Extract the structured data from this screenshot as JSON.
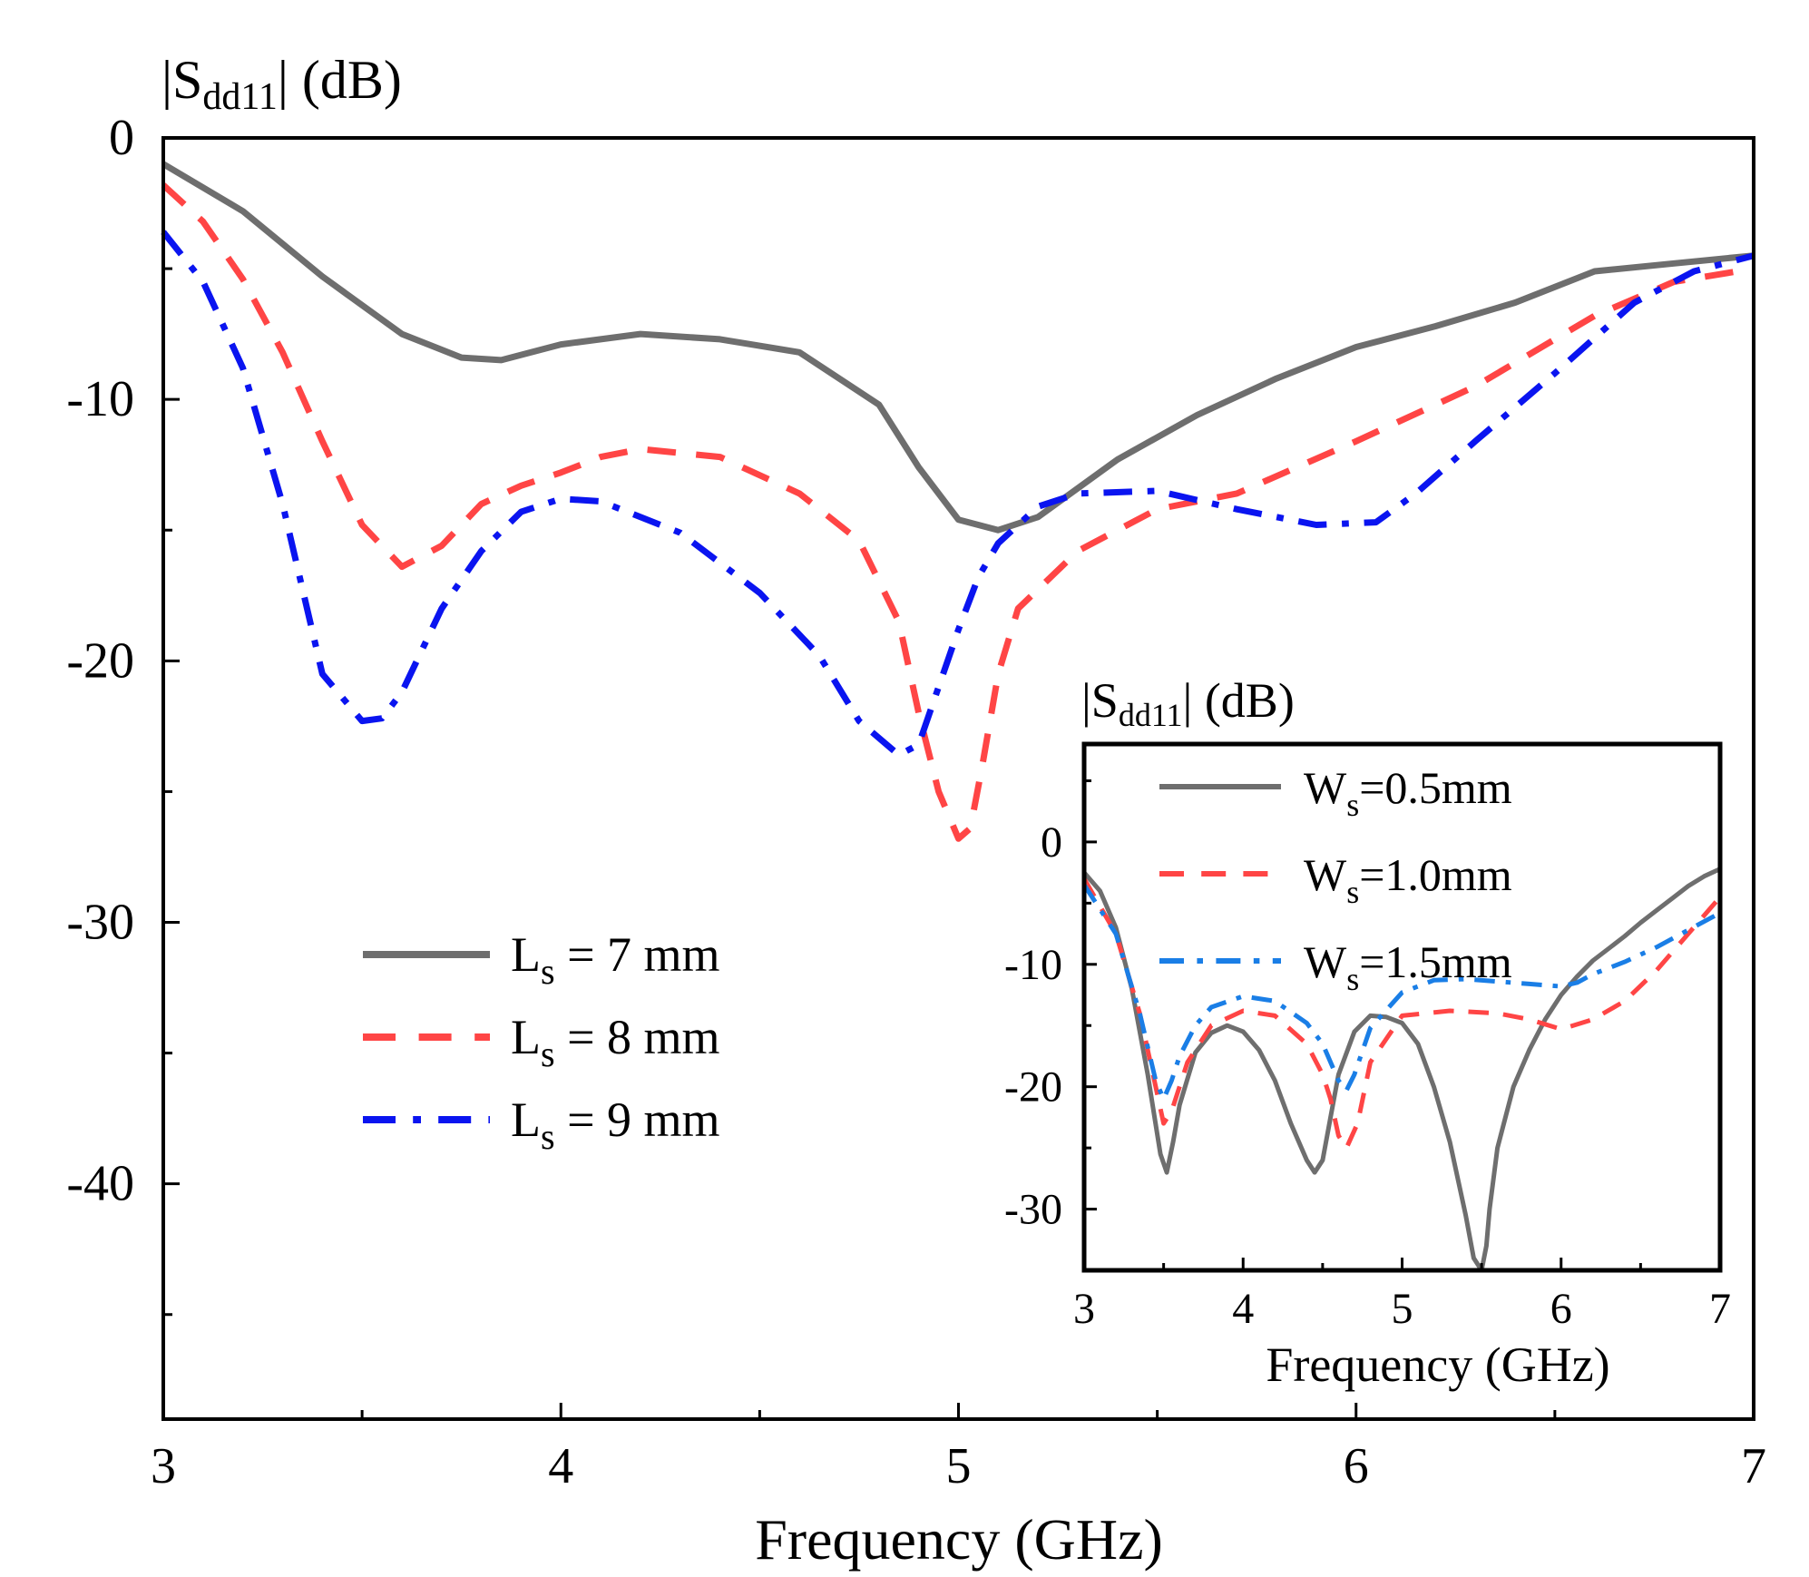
{
  "chart_data": [
    {
      "type": "line",
      "xlabel": "Frequency (GHz)",
      "ylabel": {
        "prefix": "|S",
        "sub": "dd11",
        "suffix": "| (dB)"
      },
      "xlim": [
        3,
        7
      ],
      "ylim": [
        -49,
        0
      ],
      "xticks": [
        3,
        4,
        5,
        6,
        7
      ],
      "yticks": [
        0,
        -10,
        -20,
        -30,
        -40
      ],
      "legend_position": "center-left",
      "series": [
        {
          "name": "Ls = 7 mm",
          "label": {
            "main": "L",
            "sub": "s",
            "rest": " = 7 mm"
          },
          "color": "#6e6e6e",
          "style": "solid",
          "x": [
            3.0,
            3.2,
            3.4,
            3.6,
            3.75,
            3.85,
            4.0,
            4.2,
            4.4,
            4.6,
            4.8,
            4.9,
            5.0,
            5.1,
            5.2,
            5.4,
            5.6,
            5.8,
            6.0,
            6.2,
            6.4,
            6.6,
            6.8,
            7.0
          ],
          "y": [
            -1.0,
            -2.8,
            -5.3,
            -7.5,
            -8.4,
            -8.5,
            -7.9,
            -7.5,
            -7.7,
            -8.2,
            -10.2,
            -12.6,
            -14.6,
            -15.0,
            -14.5,
            -12.3,
            -10.6,
            -9.2,
            -8.0,
            -7.2,
            -6.3,
            -5.1,
            -4.8,
            -4.5
          ]
        },
        {
          "name": "Ls = 8 mm",
          "label": {
            "main": "L",
            "sub": "s",
            "rest": " = 8 mm"
          },
          "color": "#ff4545",
          "style": "dashed",
          "x": [
            3.0,
            3.1,
            3.2,
            3.3,
            3.4,
            3.5,
            3.6,
            3.7,
            3.8,
            3.9,
            4.0,
            4.1,
            4.2,
            4.4,
            4.6,
            4.75,
            4.85,
            4.9,
            4.95,
            5.0,
            5.03,
            5.06,
            5.1,
            5.15,
            5.3,
            5.5,
            5.7,
            6.0,
            6.3,
            6.6,
            6.8,
            7.0
          ],
          "y": [
            -1.8,
            -3.2,
            -5.4,
            -8.2,
            -11.6,
            -14.8,
            -16.4,
            -15.6,
            -14.0,
            -13.3,
            -12.8,
            -12.2,
            -11.9,
            -12.2,
            -13.6,
            -15.4,
            -18.5,
            -22.0,
            -25.0,
            -26.8,
            -26.4,
            -24.0,
            -20.5,
            -18.0,
            -15.8,
            -14.2,
            -13.6,
            -11.6,
            -9.5,
            -6.8,
            -5.5,
            -5.0
          ]
        },
        {
          "name": "Ls = 9 mm",
          "label": {
            "main": "L",
            "sub": "s",
            "rest": " = 9 mm"
          },
          "color": "#0a14f0",
          "style": "dashdot",
          "x": [
            3.0,
            3.1,
            3.2,
            3.3,
            3.4,
            3.5,
            3.55,
            3.6,
            3.7,
            3.8,
            3.9,
            4.0,
            4.1,
            4.3,
            4.5,
            4.65,
            4.75,
            4.85,
            4.9,
            4.95,
            5.0,
            5.05,
            5.1,
            5.2,
            5.3,
            5.5,
            5.7,
            5.9,
            6.05,
            6.15,
            6.3,
            6.5,
            6.7,
            6.85,
            7.0
          ],
          "y": [
            -3.6,
            -5.5,
            -8.8,
            -14.0,
            -20.5,
            -22.3,
            -22.2,
            -21.2,
            -18.0,
            -15.8,
            -14.3,
            -13.8,
            -13.9,
            -15.1,
            -17.4,
            -19.8,
            -22.3,
            -23.6,
            -23.2,
            -21.0,
            -18.8,
            -16.8,
            -15.5,
            -14.1,
            -13.6,
            -13.5,
            -14.2,
            -14.8,
            -14.7,
            -13.6,
            -11.6,
            -9.0,
            -6.3,
            -5.1,
            -4.5
          ]
        }
      ]
    },
    {
      "type": "line",
      "xlabel": "Frequency (GHz)",
      "ylabel": {
        "prefix": "|S",
        "sub": "dd11",
        "suffix": "| (dB)"
      },
      "xlim": [
        3,
        7
      ],
      "ylim": [
        -35,
        8
      ],
      "xticks": [
        3,
        4,
        5,
        6,
        7
      ],
      "yticks": [
        0,
        -10,
        -20,
        -30
      ],
      "legend_position": "top-right",
      "series": [
        {
          "name": "Ws=0.5mm",
          "label": {
            "main": "W",
            "sub": "s",
            "rest": "=0.5mm"
          },
          "color": "#6e6e6e",
          "style": "solid",
          "x": [
            3.0,
            3.1,
            3.2,
            3.3,
            3.4,
            3.48,
            3.52,
            3.56,
            3.6,
            3.7,
            3.8,
            3.9,
            4.0,
            4.1,
            4.2,
            4.3,
            4.4,
            4.45,
            4.5,
            4.55,
            4.6,
            4.7,
            4.8,
            4.9,
            5.0,
            5.1,
            5.2,
            5.3,
            5.4,
            5.45,
            5.5,
            5.53,
            5.55,
            5.6,
            5.7,
            5.8,
            5.9,
            6.0,
            6.1,
            6.2,
            6.3,
            6.4,
            6.5,
            6.6,
            6.7,
            6.8,
            6.9,
            7.0
          ],
          "y": [
            -2.5,
            -4.0,
            -7.0,
            -12.0,
            -19.0,
            -25.5,
            -27.0,
            -24.5,
            -21.5,
            -17.2,
            -15.6,
            -15.0,
            -15.5,
            -17.0,
            -19.5,
            -23.0,
            -26.0,
            -27.0,
            -26.0,
            -22.5,
            -19.0,
            -15.5,
            -14.2,
            -14.3,
            -14.8,
            -16.5,
            -20.0,
            -24.5,
            -30.5,
            -34.0,
            -35.0,
            -33.0,
            -30.0,
            -25.0,
            -20.0,
            -17.0,
            -14.5,
            -12.5,
            -11.0,
            -9.7,
            -8.7,
            -7.7,
            -6.6,
            -5.6,
            -4.6,
            -3.6,
            -2.8,
            -2.2
          ]
        },
        {
          "name": "Ws=1.0mm",
          "label": {
            "main": "W",
            "sub": "s",
            "rest": "=1.0mm"
          },
          "color": "#ff4545",
          "style": "dashed",
          "x": [
            3.0,
            3.2,
            3.35,
            3.45,
            3.5,
            3.55,
            3.65,
            3.8,
            4.0,
            4.2,
            4.4,
            4.5,
            4.55,
            4.6,
            4.65,
            4.72,
            4.8,
            5.0,
            5.3,
            5.6,
            5.8,
            6.0,
            6.2,
            6.4,
            6.6,
            6.8,
            7.0
          ],
          "y": [
            -3.0,
            -7.5,
            -14.0,
            -20.0,
            -23.0,
            -22.0,
            -18.0,
            -15.0,
            -13.8,
            -14.2,
            -16.5,
            -19.0,
            -21.0,
            -24.0,
            -25.0,
            -23.0,
            -18.0,
            -14.2,
            -13.8,
            -14.0,
            -14.5,
            -15.3,
            -14.5,
            -13.0,
            -10.5,
            -7.5,
            -4.5
          ]
        },
        {
          "name": "Ws=1.5mm",
          "label": {
            "main": "W",
            "sub": "s",
            "rest": "=1.5mm"
          },
          "color": "#1a7ee6",
          "style": "dashdot",
          "x": [
            3.0,
            3.2,
            3.35,
            3.45,
            3.5,
            3.55,
            3.6,
            3.7,
            3.8,
            4.0,
            4.2,
            4.4,
            4.5,
            4.6,
            4.65,
            4.7,
            4.8,
            5.0,
            5.2,
            5.4,
            5.6,
            5.8,
            6.0,
            6.1,
            6.2,
            6.4,
            6.6,
            6.8,
            7.0
          ],
          "y": [
            -3.5,
            -7.5,
            -14.0,
            -19.5,
            -21.0,
            -19.5,
            -17.5,
            -15.0,
            -13.5,
            -12.6,
            -13.0,
            -14.8,
            -16.5,
            -19.5,
            -20.3,
            -19.0,
            -15.2,
            -12.3,
            -11.3,
            -11.2,
            -11.4,
            -11.6,
            -11.8,
            -11.5,
            -10.8,
            -9.8,
            -8.6,
            -7.2,
            -5.8
          ]
        }
      ]
    }
  ]
}
